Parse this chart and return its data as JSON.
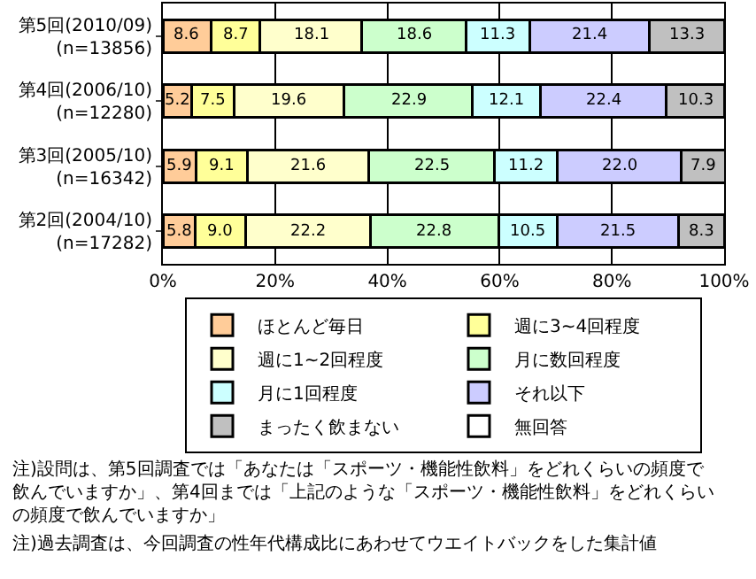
{
  "chart_data": {
    "type": "bar",
    "orientation": "horizontal",
    "stacked": true,
    "categories": [
      "第5回(2010/09)\n(n=13856)",
      "第4回(2006/10)\n(n=12280)",
      "第3回(2005/10)\n(n=16342)",
      "第2回(2004/10)\n(n=17282)"
    ],
    "series": [
      {
        "name": "ほとんど毎日",
        "color": "#ffcc99",
        "values": [
          8.6,
          5.2,
          5.9,
          5.8
        ],
        "value_labels": [
          "8.6",
          "5.2",
          "5.9",
          "5.8"
        ]
      },
      {
        "name": "週に3~4回程度",
        "color": "#ffff99",
        "values": [
          8.7,
          7.5,
          9.1,
          9.0
        ],
        "value_labels": [
          "8.7",
          "7.5",
          "9.1",
          "9.0"
        ]
      },
      {
        "name": "週に1~2回程度",
        "color": "#ffffcc",
        "values": [
          18.1,
          19.6,
          21.6,
          22.2
        ],
        "value_labels": [
          "18.1",
          "19.6",
          "21.6",
          "22.2"
        ]
      },
      {
        "name": "月に数回程度",
        "color": "#ccffcc",
        "values": [
          18.6,
          22.9,
          22.5,
          22.8
        ],
        "value_labels": [
          "18.6",
          "22.9",
          "22.5",
          "22.8"
        ]
      },
      {
        "name": "月に1回程度",
        "color": "#ccffff",
        "values": [
          11.3,
          12.1,
          11.2,
          10.5
        ],
        "value_labels": [
          "11.3",
          "12.1",
          "11.2",
          "10.5"
        ]
      },
      {
        "name": "それ以下",
        "color": "#ccccff",
        "values": [
          21.4,
          22.4,
          22.0,
          21.5
        ],
        "value_labels": [
          "21.4",
          "22.4",
          "22.0",
          "21.5"
        ]
      },
      {
        "name": "まったく飲まない",
        "color": "#c0c0c0",
        "values": [
          13.3,
          10.3,
          7.9,
          8.3
        ],
        "value_labels": [
          "13.3",
          "10.3",
          "7.9",
          "8.3"
        ]
      },
      {
        "name": "無回答",
        "color": "#ffffff",
        "values": [
          null,
          null,
          null,
          null
        ],
        "value_labels": [
          null,
          null,
          null,
          null
        ]
      }
    ],
    "xlim": [
      0,
      100
    ],
    "xticks": [
      {
        "value": 0,
        "label": "0%"
      },
      {
        "value": 20,
        "label": "20%"
      },
      {
        "value": 40,
        "label": "40%"
      },
      {
        "value": 60,
        "label": "60%"
      },
      {
        "value": 80,
        "label": "80%"
      },
      {
        "value": 100,
        "label": "100%"
      }
    ],
    "grid": "x",
    "legend": "bottom",
    "annotations": [
      "注)設問は、第5回調査では「あなたは「スポーツ・機能性飲料」をどれくらいの頻度で飲んでいますか」、第4回までは「上記のような「スポーツ・機能性飲料」をどれくらいの頻度で飲んでいますか」",
      "注)過去調査は、今回調査の性年代構成比にあわせてウエイトバックをした集計値"
    ]
  }
}
